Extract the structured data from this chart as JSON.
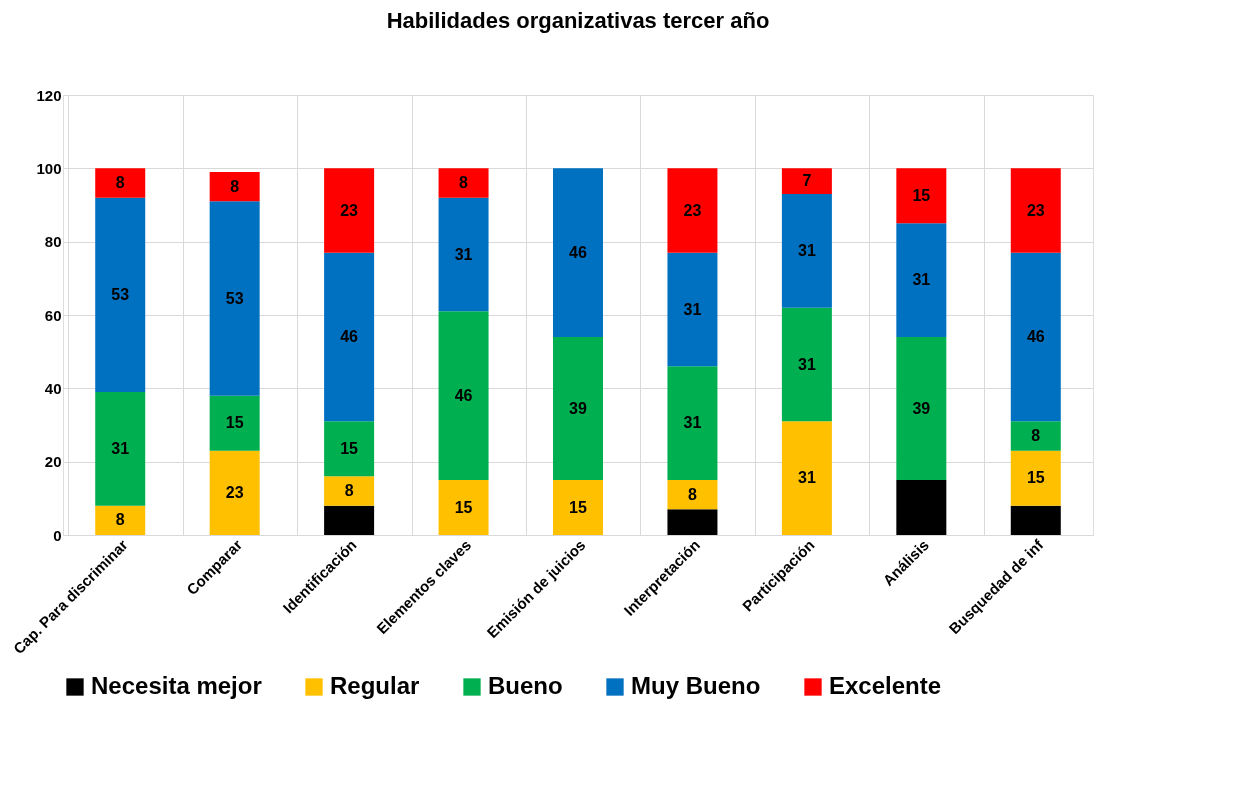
{
  "chart_data": {
    "type": "bar",
    "title": "Habilidades organizativas tercer año",
    "stacked": true,
    "categories": [
      "Cap. Para discriminar",
      "Comparar",
      "Identificación",
      "Elementos claves",
      "Emisión de juicios",
      "Interpretación",
      "Participación",
      "Análisis",
      "Busquedad de inf"
    ],
    "series": [
      {
        "name": "Necesita mejor",
        "color": "#000000",
        "values": [
          null,
          null,
          8,
          null,
          null,
          7,
          null,
          15,
          8
        ],
        "value_labels": [
          null,
          null,
          null,
          null,
          null,
          null,
          null,
          null,
          null
        ]
      },
      {
        "name": "Regular",
        "color": "#ffc000",
        "values": [
          8,
          23,
          8,
          15,
          15,
          8,
          31,
          null,
          15
        ],
        "value_labels": [
          "8",
          "23",
          "8",
          "15",
          "15",
          "8",
          "31",
          null,
          "15"
        ]
      },
      {
        "name": "Bueno",
        "color": "#00b050",
        "values": [
          31,
          15,
          15,
          46,
          39,
          31,
          31,
          39,
          8
        ],
        "value_labels": [
          "31",
          "15",
          "15",
          "46",
          "39",
          "31",
          "31",
          "39",
          "8"
        ]
      },
      {
        "name": "Muy Bueno",
        "color": "#0070c0",
        "values": [
          53,
          53,
          46,
          31,
          46,
          31,
          31,
          31,
          46
        ],
        "value_labels": [
          "53",
          "53",
          "46",
          "31",
          "46",
          "31",
          "31",
          "31",
          "46"
        ]
      },
      {
        "name": "Excelente",
        "color": "#ff0000",
        "values": [
          8,
          8,
          23,
          8,
          null,
          23,
          7,
          15,
          23
        ],
        "value_labels": [
          "8",
          "8",
          "23",
          "8",
          null,
          "23",
          "7",
          "15",
          "23"
        ]
      }
    ],
    "ylim": [
      0,
      120
    ],
    "yticks": [
      0,
      20,
      40,
      60,
      80,
      100,
      120
    ],
    "grid": true,
    "legend": "bottom"
  }
}
